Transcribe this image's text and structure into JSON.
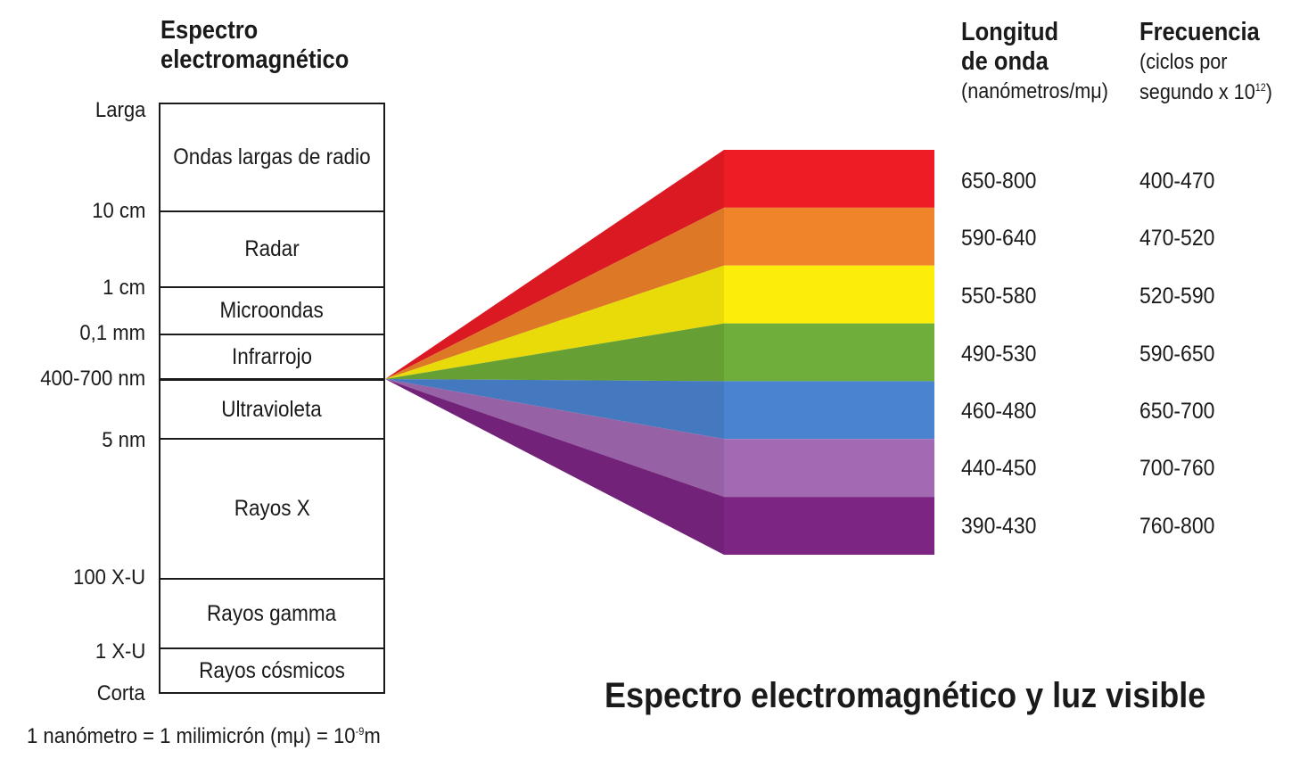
{
  "title": {
    "line1": "Espectro",
    "line2": "electromagnético"
  },
  "scale_end_top": "Larga",
  "scale_end_bottom": "Corta",
  "ticks": [
    "10 cm",
    "1 cm",
    "0,1 mm",
    "400-700 nm",
    "5 nm",
    "100 X-U",
    "1 X-U"
  ],
  "bands": [
    "Ondas largas de radio",
    "Radar",
    "Microondas",
    "Infrarrojo",
    "Ultravioleta",
    "Rayos X",
    "Rayos gamma",
    "Rayos cósmicos"
  ],
  "wavelength_header": {
    "line1": "Longitud",
    "line2": "de onda",
    "unit": "(nanómetros/mμ)"
  },
  "frequency_header": {
    "line1": "Frecuencia",
    "unit_line1": "(ciclos por",
    "unit_line2_base": "segundo x 10",
    "unit_line2_exp": "12",
    "unit_line2_close": ")"
  },
  "visible_colors": [
    {
      "color": "#ee1c25",
      "wavelength": "650-800",
      "frequency": "400-470"
    },
    {
      "color": "#f0842a",
      "wavelength": "590-640",
      "frequency": "470-520"
    },
    {
      "color": "#fcee0a",
      "wavelength": "550-580",
      "frequency": "520-590"
    },
    {
      "color": "#6fae3a",
      "wavelength": "490-530",
      "frequency": "590-650"
    },
    {
      "color": "#4a84d0",
      "wavelength": "460-480",
      "frequency": "650-700"
    },
    {
      "color": "#a36ab4",
      "wavelength": "440-450",
      "frequency": "700-760"
    },
    {
      "color": "#7c2583",
      "wavelength": "390-430",
      "frequency": "760-800"
    }
  ],
  "main_title": "Espectro electromagnético y luz visible",
  "footnote": {
    "text": "1 nanómetro = 1 milimicrón (mμ) = 10",
    "exp": "-9",
    "unit": "m"
  }
}
